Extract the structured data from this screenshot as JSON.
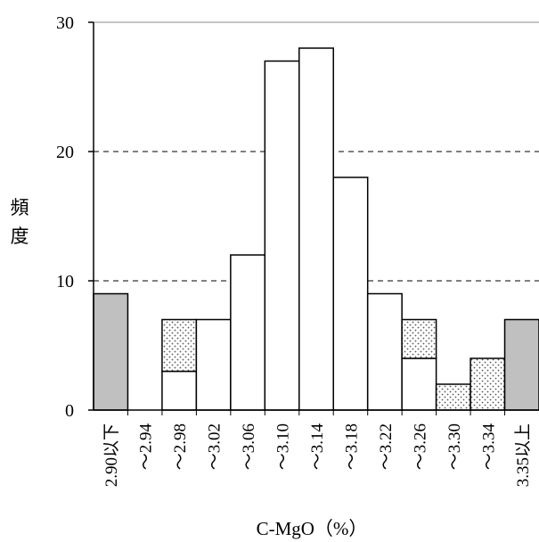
{
  "chart_data": {
    "type": "bar",
    "xlabel": "C-MgO（%）",
    "ylabel": "頻度",
    "ylim": [
      0,
      30
    ],
    "yticks": [
      0,
      10,
      20,
      30
    ],
    "grid": "dashed horizontal at 10 and 20",
    "categories": [
      "2.90以下",
      "～2.94",
      "～2.98",
      "～3.02",
      "～3.06",
      "～3.10",
      "～3.14",
      "～3.18",
      "～3.22",
      "～3.26",
      "～3.30",
      "～3.34",
      "3.35以上"
    ],
    "series": [
      {
        "style": "gray",
        "values": [
          9,
          0,
          0,
          0,
          0,
          0,
          0,
          0,
          0,
          0,
          0,
          0,
          7
        ]
      },
      {
        "style": "white",
        "values": [
          0,
          0,
          3,
          7,
          12,
          27,
          28,
          18,
          9,
          4,
          0,
          0,
          0
        ]
      },
      {
        "style": "dotted",
        "values": [
          0,
          0,
          4,
          0,
          0,
          0,
          0,
          0,
          0,
          3,
          2,
          4,
          0
        ]
      }
    ],
    "colors": {
      "gray": "#c0c0c0",
      "white": "#ffffff",
      "dotted_fill": "#ffffff",
      "dots": "#555555",
      "stroke": "#000000"
    }
  }
}
